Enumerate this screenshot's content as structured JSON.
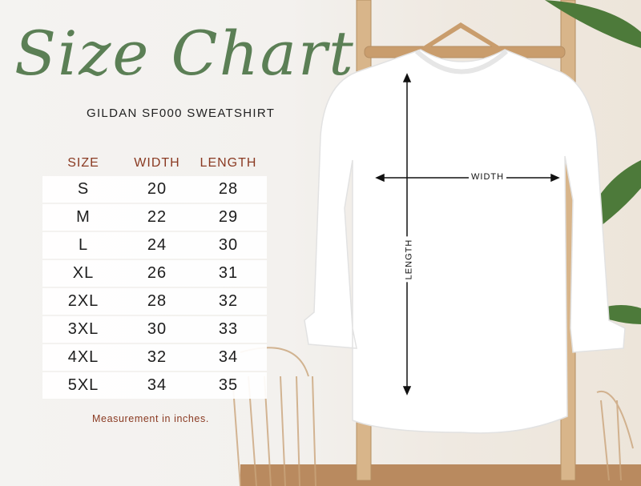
{
  "title": "Size Chart",
  "subtitle": "GILDAN SF000 SWEATSHIRT",
  "table": {
    "headers": [
      "SIZE",
      "WIDTH",
      "LENGTH"
    ],
    "rows": [
      [
        "S",
        "20",
        "28"
      ],
      [
        "M",
        "22",
        "29"
      ],
      [
        "L",
        "24",
        "30"
      ],
      [
        "XL",
        "26",
        "31"
      ],
      [
        "2XL",
        "28",
        "32"
      ],
      [
        "3XL",
        "30",
        "33"
      ],
      [
        "4XL",
        "32",
        "34"
      ],
      [
        "5XL",
        "34",
        "35"
      ]
    ]
  },
  "note": "Measurement in inches.",
  "diagram": {
    "width_label": "WIDTH",
    "length_label": "LENGTH"
  },
  "colors": {
    "title": "#5b7f55",
    "header": "#8a3a22",
    "garment": "#ffffff"
  }
}
